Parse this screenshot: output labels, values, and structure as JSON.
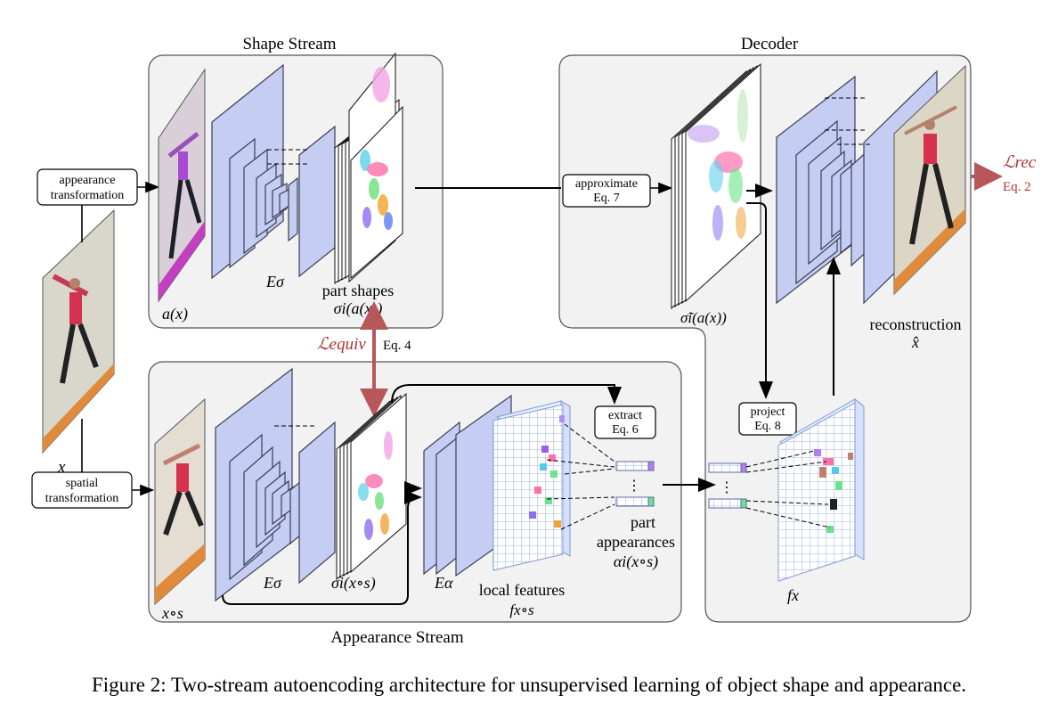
{
  "sections": {
    "shape_stream": "Shape Stream",
    "decoder": "Decoder",
    "appearance_stream": "Appearance Stream"
  },
  "boxes": {
    "appearance_transformation": [
      "appearance",
      "transformation"
    ],
    "spatial_transformation": [
      "spatial",
      "transformation"
    ],
    "approximate": [
      "approximate",
      "Eq. 7"
    ],
    "extract": [
      "extract",
      "Eq. 6"
    ],
    "project": [
      "project",
      "Eq. 8"
    ]
  },
  "labels": {
    "input_x": "x",
    "a_of_x": "a(x)",
    "e_sigma_top": "Eσ",
    "part_shapes": "part shapes",
    "sigma_a_x": "σi(a(x))",
    "sigma_tilde": "σ̃i(a(x))",
    "reconstruction": "reconstruction",
    "x_hat": "x̂",
    "x_circ_s": "x∘s",
    "e_sigma_bottom": "Eσ",
    "sigma_xs": "σi(x∘s)",
    "e_alpha": "Eα",
    "local_features": "local features",
    "f_xs": "fx∘s",
    "part": "part",
    "appearances": "appearances",
    "alpha_xs": "αi(x∘s)",
    "f_x": "fx",
    "vdots": "⋮"
  },
  "losses": {
    "l_rec": "ℒrec",
    "eq2": "Eq. 2",
    "l_equiv": "ℒequiv",
    "eq4": "Eq. 4"
  },
  "caption": "Figure 2: Two-stream autoencoding architecture for unsupervised learning of object shape and appearance.",
  "colors": {
    "layer_fill": "#c5cdf3",
    "layer_stroke": "#3a3f55",
    "panel_fill": "#f2f2f2",
    "loss_red": "#b03030",
    "arrow_red": "#b8575a"
  }
}
